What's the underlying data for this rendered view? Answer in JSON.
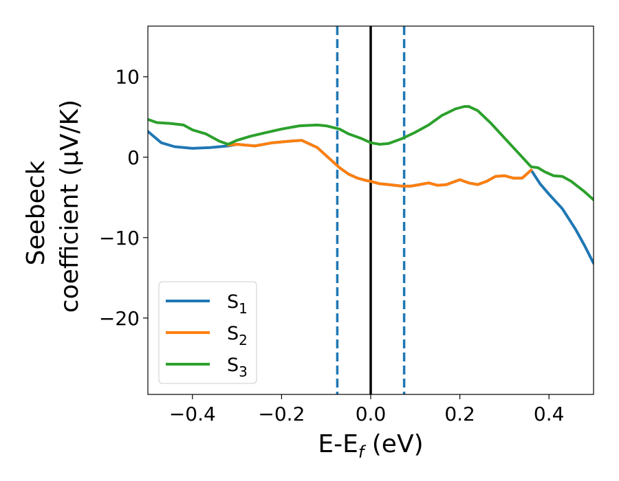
{
  "chart_data": {
    "type": "line",
    "xlabel": {
      "base": "E-E",
      "sub": "f",
      "unit": " (eV)"
    },
    "ylabel": {
      "line1": "Seebeck",
      "line2": "coefficient  (μV/K)"
    },
    "xlim": [
      -0.5,
      0.5
    ],
    "ylim": [
      -29.5,
      16.3
    ],
    "x_ticks": [
      -0.4,
      -0.2,
      0.0,
      0.2,
      0.4
    ],
    "x_tick_labels": [
      "−0.4",
      "−0.2",
      "0.0",
      "0.2",
      "0.4"
    ],
    "y_ticks": [
      10,
      0,
      -10,
      -20
    ],
    "y_tick_labels": [
      "10",
      "0",
      "−10",
      "−20"
    ],
    "grid": false,
    "legend_position": "lower-left",
    "vlines": [
      {
        "x": -0.075,
        "style": "dashed",
        "color": "#1f77b4"
      },
      {
        "x": 0.0,
        "style": "solid",
        "color": "#000000"
      },
      {
        "x": 0.075,
        "style": "dashed",
        "color": "#1f77b4"
      }
    ],
    "series": [
      {
        "name": "S",
        "sub": "1",
        "color": "#1f77b4",
        "x": [
          -0.5,
          -0.47,
          -0.44,
          -0.4,
          -0.36,
          -0.32,
          -0.3,
          -0.26,
          -0.22,
          -0.18,
          -0.155,
          -0.12,
          -0.09,
          -0.07,
          -0.05,
          -0.03,
          -0.01,
          0.0,
          0.02,
          0.04,
          0.07,
          0.09,
          0.11,
          0.13,
          0.15,
          0.17,
          0.19,
          0.2,
          0.22,
          0.24,
          0.26,
          0.28,
          0.3,
          0.32,
          0.34,
          0.36,
          0.38,
          0.4,
          0.43,
          0.46,
          0.48,
          0.5
        ],
        "y": [
          3.2,
          1.8,
          1.3,
          1.1,
          1.2,
          1.4,
          1.6,
          1.4,
          1.8,
          2.0,
          2.1,
          1.2,
          -0.3,
          -1.3,
          -2.1,
          -2.6,
          -2.9,
          -3.0,
          -3.3,
          -3.4,
          -3.6,
          -3.6,
          -3.4,
          -3.2,
          -3.5,
          -3.4,
          -3.0,
          -2.8,
          -3.2,
          -3.4,
          -3.0,
          -2.4,
          -2.3,
          -2.6,
          -2.6,
          -1.6,
          -3.3,
          -4.6,
          -6.4,
          -9.0,
          -11.0,
          -13.2
        ]
      },
      {
        "name": "S",
        "sub": "2",
        "color": "#ff7f0e",
        "x": [
          -0.32,
          -0.3,
          -0.26,
          -0.22,
          -0.18,
          -0.155,
          -0.12,
          -0.09,
          -0.07,
          -0.05,
          -0.03,
          -0.01,
          0.0,
          0.02,
          0.04,
          0.07,
          0.09,
          0.11,
          0.13,
          0.15,
          0.17,
          0.19,
          0.2,
          0.22,
          0.24,
          0.26,
          0.28,
          0.3,
          0.32,
          0.34,
          0.36
        ],
        "y": [
          1.5,
          1.6,
          1.4,
          1.8,
          2.0,
          2.1,
          1.2,
          -0.3,
          -1.3,
          -2.1,
          -2.6,
          -2.9,
          -3.0,
          -3.3,
          -3.4,
          -3.6,
          -3.6,
          -3.4,
          -3.2,
          -3.5,
          -3.4,
          -3.0,
          -2.8,
          -3.2,
          -3.4,
          -3.0,
          -2.4,
          -2.3,
          -2.6,
          -2.6,
          -1.6
        ]
      },
      {
        "name": "S",
        "sub": "3",
        "color": "#2ca02c",
        "x": [
          -0.5,
          -0.48,
          -0.45,
          -0.42,
          -0.4,
          -0.37,
          -0.34,
          -0.32,
          -0.3,
          -0.27,
          -0.24,
          -0.2,
          -0.16,
          -0.12,
          -0.1,
          -0.07,
          -0.05,
          -0.02,
          0.0,
          0.02,
          0.04,
          0.07,
          0.1,
          0.13,
          0.16,
          0.19,
          0.21,
          0.22,
          0.24,
          0.27,
          0.3,
          0.33,
          0.36,
          0.375,
          0.39,
          0.41,
          0.43,
          0.45,
          0.48,
          0.5
        ],
        "y": [
          4.7,
          4.3,
          4.2,
          4.0,
          3.4,
          2.9,
          2.0,
          1.6,
          2.1,
          2.6,
          3.0,
          3.5,
          3.9,
          4.0,
          3.9,
          3.5,
          2.9,
          2.3,
          1.8,
          1.6,
          1.7,
          2.3,
          3.1,
          4.0,
          5.2,
          6.0,
          6.3,
          6.3,
          5.8,
          4.2,
          2.4,
          0.6,
          -1.2,
          -1.3,
          -1.8,
          -2.3,
          -2.4,
          -3.0,
          -4.3,
          -5.3
        ]
      }
    ]
  }
}
